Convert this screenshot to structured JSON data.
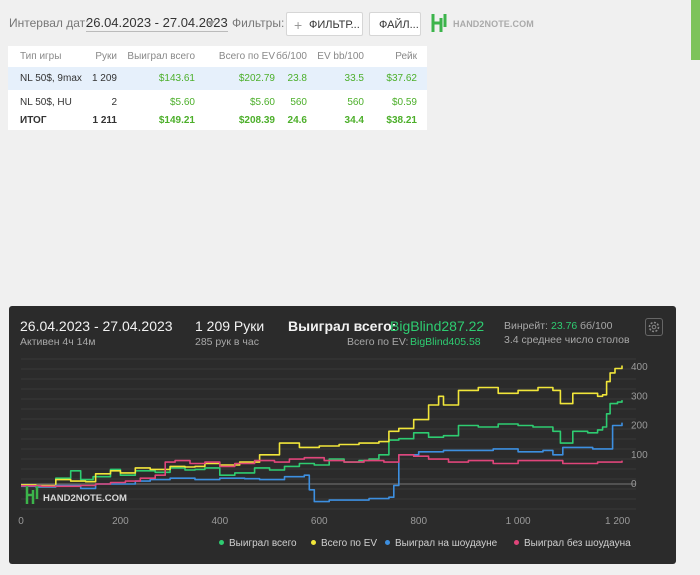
{
  "header": {
    "date_interval_label": "Интервал дат:",
    "date_range": "26.04.2023 - 27.04.2023",
    "filters_label": "Фильтры:",
    "filter_button": "ФИЛЬТР...",
    "file_button": "ФАЙЛ...",
    "logo_text": "HAND2NOTE.COM"
  },
  "table": {
    "columns": [
      "Тип игры",
      "Руки",
      "Выиграл всего",
      "Всего по EV",
      "бб/100",
      "EV bb/100",
      "Рейк"
    ],
    "rows": [
      [
        "NL 50$, 9max",
        "1 209",
        "$143.61",
        "$202.79",
        "23.8",
        "33.5",
        "$37.62"
      ],
      [
        "NL 50$, HU",
        "2",
        "$5.60",
        "$5.60",
        "560",
        "560",
        "$0.59"
      ]
    ],
    "total": [
      "ИТОГ",
      "1 211",
      "$149.21",
      "$208.39",
      "24.6",
      "34.4",
      "$38.21"
    ]
  },
  "stats": {
    "date_range": "26.04.2023 - 27.04.2023",
    "active": "Активен 4ч 14м",
    "hands": "1 209 Руки",
    "hands_per_hour": "285 рук в час",
    "won_label": "Выиграл всего:",
    "won_value": "BigBlind287.22",
    "ev_label": "Всего по EV:",
    "ev_value": "BigBlind405.58",
    "winrate_label": "Винрейт:",
    "winrate_value": "23.76",
    "winrate_unit": "бб/100",
    "tables": "3.4 среднее число столов"
  },
  "chart_data": {
    "type": "line",
    "x_ticks": [
      "0",
      "200",
      "400",
      "600",
      "800",
      "1 000",
      "1 200"
    ],
    "y_ticks": [
      "400",
      "300",
      "200",
      "100",
      "0"
    ],
    "xlim": [
      0,
      1209
    ],
    "ylim": [
      -80,
      410
    ],
    "watermark": "HAND2NOTE.COM",
    "series": [
      {
        "name": "Выиграл всего",
        "color": "#2ecc71",
        "points": [
          [
            0,
            -5
          ],
          [
            30,
            -10
          ],
          [
            70,
            20
          ],
          [
            100,
            45
          ],
          [
            120,
            15
          ],
          [
            145,
            25
          ],
          [
            180,
            50
          ],
          [
            200,
            30
          ],
          [
            230,
            45
          ],
          [
            270,
            40
          ],
          [
            300,
            55
          ],
          [
            330,
            48
          ],
          [
            350,
            50
          ],
          [
            370,
            55
          ],
          [
            400,
            30
          ],
          [
            430,
            38
          ],
          [
            470,
            55
          ],
          [
            500,
            48
          ],
          [
            530,
            60
          ],
          [
            560,
            70
          ],
          [
            590,
            65
          ],
          [
            620,
            85
          ],
          [
            650,
            75
          ],
          [
            680,
            80
          ],
          [
            700,
            85
          ],
          [
            720,
            100
          ],
          [
            740,
            150
          ],
          [
            760,
            155
          ],
          [
            790,
            175
          ],
          [
            820,
            160
          ],
          [
            850,
            165
          ],
          [
            880,
            200
          ],
          [
            920,
            195
          ],
          [
            960,
            205
          ],
          [
            1000,
            200
          ],
          [
            1030,
            195
          ],
          [
            1070,
            180
          ],
          [
            1085,
            140
          ],
          [
            1110,
            180
          ],
          [
            1140,
            175
          ],
          [
            1160,
            185
          ],
          [
            1170,
            195
          ],
          [
            1178,
            240
          ],
          [
            1185,
            275
          ],
          [
            1200,
            280
          ],
          [
            1209,
            287
          ]
        ]
      },
      {
        "name": "Всего по EV",
        "color": "#f1e63a",
        "points": [
          [
            0,
            -3
          ],
          [
            30,
            -5
          ],
          [
            70,
            15
          ],
          [
            100,
            10
          ],
          [
            130,
            8
          ],
          [
            150,
            35
          ],
          [
            180,
            45
          ],
          [
            200,
            38
          ],
          [
            230,
            55
          ],
          [
            260,
            50
          ],
          [
            300,
            60
          ],
          [
            330,
            58
          ],
          [
            350,
            60
          ],
          [
            370,
            70
          ],
          [
            400,
            65
          ],
          [
            440,
            75
          ],
          [
            480,
            100
          ],
          [
            520,
            140
          ],
          [
            560,
            125
          ],
          [
            600,
            130
          ],
          [
            640,
            135
          ],
          [
            680,
            140
          ],
          [
            720,
            145
          ],
          [
            740,
            180
          ],
          [
            760,
            190
          ],
          [
            790,
            220
          ],
          [
            820,
            270
          ],
          [
            840,
            300
          ],
          [
            850,
            270
          ],
          [
            880,
            320
          ],
          [
            920,
            330
          ],
          [
            960,
            310
          ],
          [
            1000,
            320
          ],
          [
            1040,
            330
          ],
          [
            1070,
            320
          ],
          [
            1085,
            275
          ],
          [
            1110,
            310
          ],
          [
            1140,
            310
          ],
          [
            1160,
            300
          ],
          [
            1170,
            305
          ],
          [
            1178,
            350
          ],
          [
            1185,
            380
          ],
          [
            1195,
            395
          ],
          [
            1209,
            405
          ]
        ]
      },
      {
        "name": "Выиграл на шоудауне",
        "color": "#3d8fe0",
        "points": [
          [
            0,
            -8
          ],
          [
            30,
            -10
          ],
          [
            70,
            -5
          ],
          [
            120,
            -15
          ],
          [
            150,
            0
          ],
          [
            180,
            0
          ],
          [
            230,
            10
          ],
          [
            260,
            15
          ],
          [
            300,
            20
          ],
          [
            350,
            15
          ],
          [
            400,
            20
          ],
          [
            450,
            18
          ],
          [
            480,
            15
          ],
          [
            530,
            25
          ],
          [
            570,
            30
          ],
          [
            580,
            -20
          ],
          [
            590,
            -60
          ],
          [
            620,
            -55
          ],
          [
            660,
            -55
          ],
          [
            700,
            -50
          ],
          [
            740,
            -45
          ],
          [
            750,
            -5
          ],
          [
            760,
            100
          ],
          [
            780,
            100
          ],
          [
            800,
            110
          ],
          [
            850,
            115
          ],
          [
            900,
            115
          ],
          [
            950,
            120
          ],
          [
            1000,
            110
          ],
          [
            1050,
            115
          ],
          [
            1070,
            100
          ],
          [
            1090,
            125
          ],
          [
            1120,
            125
          ],
          [
            1150,
            120
          ],
          [
            1170,
            120
          ],
          [
            1190,
            200
          ],
          [
            1209,
            210
          ]
        ]
      },
      {
        "name": "Выиграл без шоудауна",
        "color": "#e0457a",
        "points": [
          [
            0,
            -6
          ],
          [
            40,
            -8
          ],
          [
            90,
            -8
          ],
          [
            120,
            -5
          ],
          [
            150,
            0
          ],
          [
            180,
            5
          ],
          [
            210,
            10
          ],
          [
            240,
            20
          ],
          [
            270,
            30
          ],
          [
            290,
            75
          ],
          [
            310,
            80
          ],
          [
            340,
            70
          ],
          [
            370,
            75
          ],
          [
            400,
            60
          ],
          [
            430,
            70
          ],
          [
            470,
            80
          ],
          [
            510,
            75
          ],
          [
            540,
            85
          ],
          [
            570,
            90
          ],
          [
            610,
            80
          ],
          [
            650,
            75
          ],
          [
            690,
            80
          ],
          [
            730,
            75
          ],
          [
            760,
            100
          ],
          [
            790,
            95
          ],
          [
            820,
            85
          ],
          [
            860,
            75
          ],
          [
            900,
            80
          ],
          [
            950,
            70
          ],
          [
            1000,
            80
          ],
          [
            1050,
            80
          ],
          [
            1090,
            70
          ],
          [
            1120,
            70
          ],
          [
            1160,
            75
          ],
          [
            1209,
            80
          ]
        ]
      }
    ]
  }
}
